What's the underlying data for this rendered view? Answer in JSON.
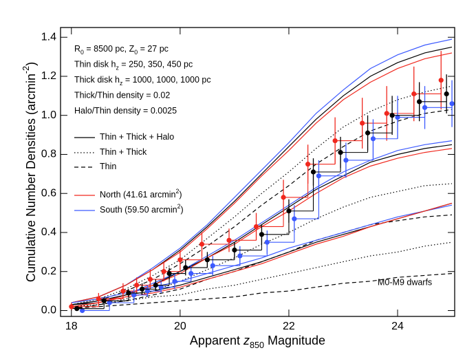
{
  "chart_data": {
    "type": "line",
    "x_label": [
      {
        "text": "Apparent "
      },
      {
        "text": "z",
        "italic": true
      },
      {
        "text": "850",
        "shift": "sub"
      },
      {
        "text": " Magnitude"
      }
    ],
    "y_label": [
      {
        "text": "Cumulative Number Densities (arcmin"
      },
      {
        "text": "-2",
        "shift": "super"
      },
      {
        "text": ")"
      }
    ],
    "xlim": [
      17.8,
      25.05
    ],
    "ylim": [
      -0.03,
      1.45
    ],
    "xticks": [
      18,
      20,
      22,
      24
    ],
    "yticks": [
      {
        "value": 0,
        "label": "0.0"
      },
      0.2,
      0.4,
      0.6,
      0.8,
      {
        "value": 1,
        "label": "1.0"
      },
      1.2,
      1.4
    ],
    "annotations": [
      [
        {
          "text": "R"
        },
        {
          "text": "0",
          "shift": "sub"
        },
        {
          "text": " = 8500 pc, Z"
        },
        {
          "text": "0",
          "shift": "sub"
        },
        {
          "text": " = 27 pc"
        }
      ],
      [
        {
          "text": "Thin disk h"
        },
        {
          "text": "z",
          "shift": "sub"
        },
        {
          "text": " = 250, 350, 450 pc"
        }
      ],
      [
        {
          "text": "Thick disk h"
        },
        {
          "text": "z",
          "shift": "sub"
        },
        {
          "text": " = 1000, 1000, 1000 pc"
        }
      ],
      [
        {
          "text": "Thick/Thin density = 0.02"
        }
      ],
      [
        {
          "text": "Halo/Thin density = 0.0025"
        }
      ]
    ],
    "legend": [
      {
        "parts": [
          {
            "text": "Thin + Thick + Halo"
          }
        ],
        "color": "#000000",
        "dash": "solid"
      },
      {
        "parts": [
          {
            "text": "Thin + Thick"
          }
        ],
        "color": "#000000",
        "dash": "dotted"
      },
      {
        "parts": [
          {
            "text": "Thin"
          }
        ],
        "color": "#000000",
        "dash": "dashed"
      },
      {
        "parts": [
          {
            "text": "North (41.61 arcmin"
          },
          {
            "text": "2",
            "shift": "super"
          },
          {
            "text": ")"
          }
        ],
        "color": "#f0281e",
        "dash": "solid"
      },
      {
        "parts": [
          {
            "text": "South (59.50 arcmin"
          },
          {
            "text": "2",
            "shift": "super"
          },
          {
            "text": ")"
          }
        ],
        "color": "#3c5aff",
        "dash": "solid"
      }
    ],
    "dwarf_label": "M0-M9 dwarfs",
    "x": [
      18,
      18.5,
      19,
      19.5,
      20,
      20.5,
      21,
      21.5,
      22,
      22.5,
      23,
      23.5,
      24,
      24.5,
      25
    ],
    "curves": [
      {
        "color": "#3c5aff",
        "dash": "solid",
        "values": [
          0.04,
          0.07,
          0.13,
          0.22,
          0.32,
          0.44,
          0.58,
          0.72,
          0.86,
          1.01,
          1.13,
          1.24,
          1.31,
          1.36,
          1.39
        ]
      },
      {
        "color": "#000000",
        "dash": "solid",
        "values": [
          0.04,
          0.07,
          0.13,
          0.21,
          0.31,
          0.43,
          0.56,
          0.7,
          0.84,
          0.98,
          1.1,
          1.2,
          1.27,
          1.32,
          1.35
        ]
      },
      {
        "color": "#f0281e",
        "dash": "solid",
        "values": [
          0.04,
          0.07,
          0.13,
          0.21,
          0.3,
          0.42,
          0.55,
          0.69,
          0.82,
          0.96,
          1.08,
          1.17,
          1.24,
          1.29,
          1.32
        ]
      },
      {
        "color": "#000000",
        "dash": "dotted",
        "values": [
          0.03,
          0.06,
          0.11,
          0.18,
          0.26,
          0.37,
          0.48,
          0.6,
          0.71,
          0.83,
          0.94,
          1.02,
          1.08,
          1.12,
          1.15
        ]
      },
      {
        "color": "#000000",
        "dash": "dashed",
        "values": [
          0.03,
          0.05,
          0.1,
          0.16,
          0.24,
          0.33,
          0.43,
          0.54,
          0.64,
          0.75,
          0.84,
          0.92,
          0.97,
          1.01,
          1.03
        ]
      },
      {
        "color": "#3c5aff",
        "dash": "solid",
        "values": [
          0.03,
          0.05,
          0.08,
          0.14,
          0.2,
          0.28,
          0.36,
          0.45,
          0.54,
          0.63,
          0.71,
          0.77,
          0.82,
          0.85,
          0.87
        ]
      },
      {
        "color": "#000000",
        "dash": "solid",
        "values": [
          0.03,
          0.04,
          0.08,
          0.13,
          0.2,
          0.27,
          0.35,
          0.44,
          0.53,
          0.62,
          0.69,
          0.76,
          0.8,
          0.83,
          0.85
        ]
      },
      {
        "color": "#f0281e",
        "dash": "solid",
        "values": [
          0.02,
          0.04,
          0.08,
          0.13,
          0.19,
          0.27,
          0.34,
          0.43,
          0.51,
          0.6,
          0.68,
          0.74,
          0.78,
          0.81,
          0.83
        ]
      },
      {
        "color": "#000000",
        "dash": "dotted",
        "values": [
          0.02,
          0.03,
          0.06,
          0.1,
          0.15,
          0.21,
          0.27,
          0.34,
          0.4,
          0.47,
          0.53,
          0.58,
          0.61,
          0.64,
          0.65
        ]
      },
      {
        "color": "#000000",
        "dash": "dashed",
        "values": [
          0.01,
          0.03,
          0.05,
          0.08,
          0.11,
          0.16,
          0.2,
          0.25,
          0.3,
          0.36,
          0.4,
          0.44,
          0.46,
          0.48,
          0.49
        ]
      },
      {
        "color": "#3c5aff",
        "dash": "solid",
        "values": [
          0.04,
          0.06,
          0.09,
          0.12,
          0.15,
          0.19,
          0.23,
          0.27,
          0.32,
          0.36,
          0.4,
          0.44,
          0.48,
          0.51,
          0.54
        ]
      },
      {
        "color": "#000000",
        "dash": "solid",
        "values": [
          0.03,
          0.05,
          0.08,
          0.1,
          0.13,
          0.17,
          0.21,
          0.25,
          0.3,
          0.35,
          0.39,
          0.43,
          0.47,
          0.51,
          0.55
        ]
      },
      {
        "color": "#f0281e",
        "dash": "solid",
        "values": [
          0.02,
          0.04,
          0.07,
          0.09,
          0.12,
          0.16,
          0.2,
          0.24,
          0.29,
          0.34,
          0.38,
          0.43,
          0.47,
          0.51,
          0.55
        ]
      },
      {
        "color": "#000000",
        "dash": "dotted",
        "values": [
          0.02,
          0.03,
          0.05,
          0.07,
          0.08,
          0.11,
          0.13,
          0.16,
          0.19,
          0.22,
          0.25,
          0.28,
          0.3,
          0.33,
          0.35
        ]
      },
      {
        "color": "#000000",
        "dash": "dashed",
        "values": [
          0.01,
          0.02,
          0.03,
          0.04,
          0.05,
          0.06,
          0.07,
          0.09,
          0.1,
          0.12,
          0.14,
          0.15,
          0.17,
          0.18,
          0.19
        ]
      }
    ],
    "observed": [
      {
        "color": "#f0281e",
        "x": [
          18.0,
          18.5,
          18.95,
          19.2,
          19.45,
          19.7,
          20.0,
          20.4,
          20.9,
          21.4,
          21.9,
          22.35,
          22.85,
          23.35,
          23.8,
          24.3,
          24.8
        ],
        "values": [
          0.02,
          0.06,
          0.1,
          0.13,
          0.16,
          0.2,
          0.26,
          0.34,
          0.36,
          0.43,
          0.58,
          0.75,
          0.87,
          0.96,
          1.01,
          1.11,
          1.18
        ],
        "errors": [
          0.02,
          0.03,
          0.04,
          0.04,
          0.05,
          0.05,
          0.05,
          0.06,
          0.06,
          0.07,
          0.09,
          0.1,
          0.12,
          0.13,
          0.14,
          0.14,
          0.15
        ]
      },
      {
        "color": "#3c5aff",
        "x": [
          18.2,
          18.7,
          19.15,
          19.4,
          19.65,
          19.9,
          20.2,
          20.6,
          21.1,
          21.6,
          22.1,
          22.55,
          23.05,
          23.55,
          24.0,
          24.5,
          25.0
        ],
        "values": [
          0.0,
          0.04,
          0.08,
          0.1,
          0.12,
          0.15,
          0.19,
          0.23,
          0.28,
          0.35,
          0.47,
          0.69,
          0.77,
          0.88,
          0.99,
          1.04,
          1.06
        ],
        "errors": [
          0.01,
          0.02,
          0.03,
          0.03,
          0.03,
          0.04,
          0.04,
          0.05,
          0.05,
          0.06,
          0.07,
          0.08,
          0.09,
          0.1,
          0.11,
          0.11,
          0.12
        ]
      },
      {
        "color": "#000000",
        "x": [
          18.1,
          18.6,
          19.05,
          19.3,
          19.55,
          19.8,
          20.1,
          20.5,
          21.0,
          21.5,
          22.0,
          22.45,
          22.95,
          23.45,
          23.9,
          24.4,
          24.9
        ],
        "values": [
          0.01,
          0.05,
          0.09,
          0.11,
          0.13,
          0.19,
          0.22,
          0.26,
          0.31,
          0.39,
          0.51,
          0.71,
          0.81,
          0.91,
          1.0,
          1.07,
          1.11
        ],
        "errors": [
          0.01,
          0.02,
          0.02,
          0.03,
          0.03,
          0.03,
          0.04,
          0.04,
          0.04,
          0.05,
          0.06,
          0.07,
          0.08,
          0.09,
          0.1,
          0.1,
          0.1
        ]
      }
    ]
  }
}
